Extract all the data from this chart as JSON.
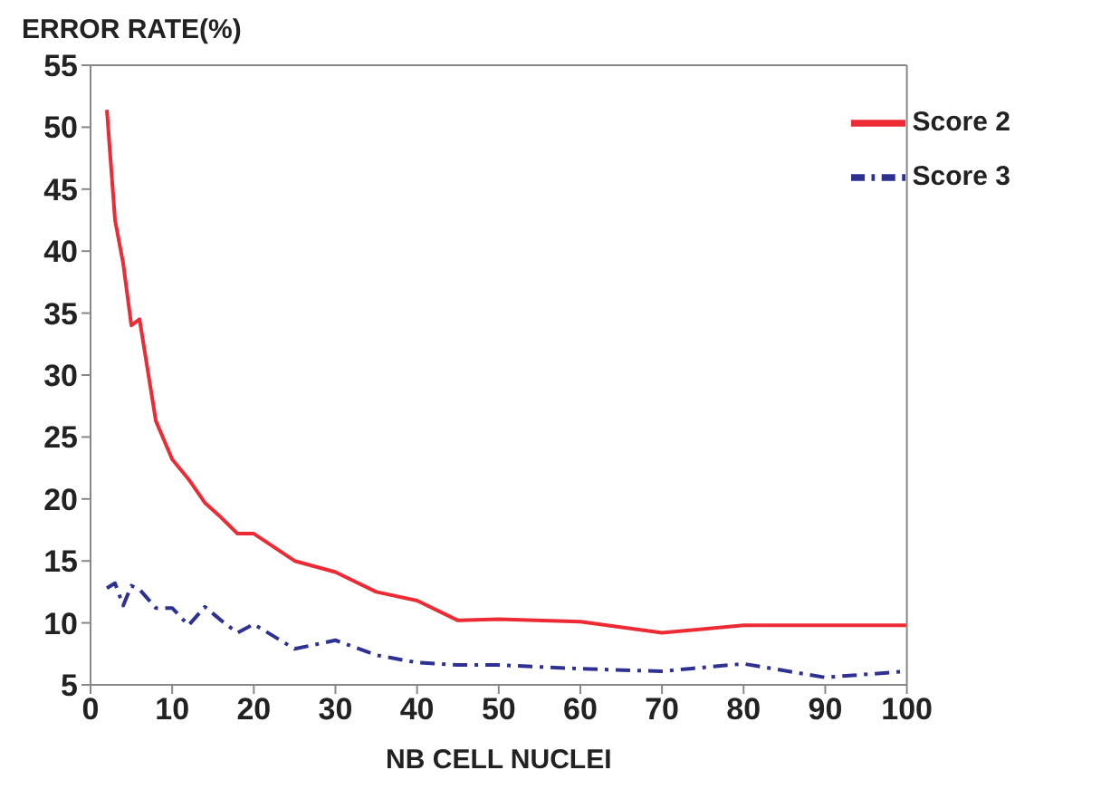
{
  "chart_data": {
    "type": "line",
    "ylabel": "ERROR RATE(%)",
    "xlabel": "NB CELL NUCLEI",
    "x": [
      2,
      3,
      4,
      5,
      6,
      8,
      10,
      12,
      14,
      16,
      18,
      20,
      25,
      30,
      35,
      40,
      45,
      50,
      60,
      70,
      80,
      90,
      100
    ],
    "series": [
      {
        "name": "Score 2",
        "color": "#ee2a35",
        "line_style": "solid",
        "values": [
          51.4,
          42.5,
          39,
          34,
          34.5,
          26.3,
          23.2,
          21.6,
          19.7,
          18.5,
          17.2,
          17.2,
          15,
          14.1,
          12.5,
          11.8,
          10.2,
          10.3,
          10.1,
          9.2,
          9.8,
          9.8,
          9.8
        ]
      },
      {
        "name": "Score 3",
        "color": "#2e3192",
        "line_style": "dashed",
        "values": [
          12.8,
          13.2,
          11.4,
          13,
          12.7,
          11.2,
          11.2,
          9.8,
          11.3,
          10.2,
          9.2,
          9.9,
          7.9,
          8.6,
          7.4,
          6.8,
          6.6,
          6.6,
          6.3,
          6.1,
          6.7,
          5.6,
          6.1
        ]
      }
    ],
    "xlim": [
      0,
      100
    ],
    "xticks": [
      0,
      10,
      20,
      30,
      40,
      50,
      60,
      70,
      80,
      90,
      100
    ],
    "ylim": [
      5,
      55
    ],
    "yticks": [
      5,
      10,
      15,
      20,
      25,
      30,
      35,
      40,
      45,
      50,
      55
    ],
    "grid": false,
    "legend": "top right",
    "marker": "none"
  }
}
